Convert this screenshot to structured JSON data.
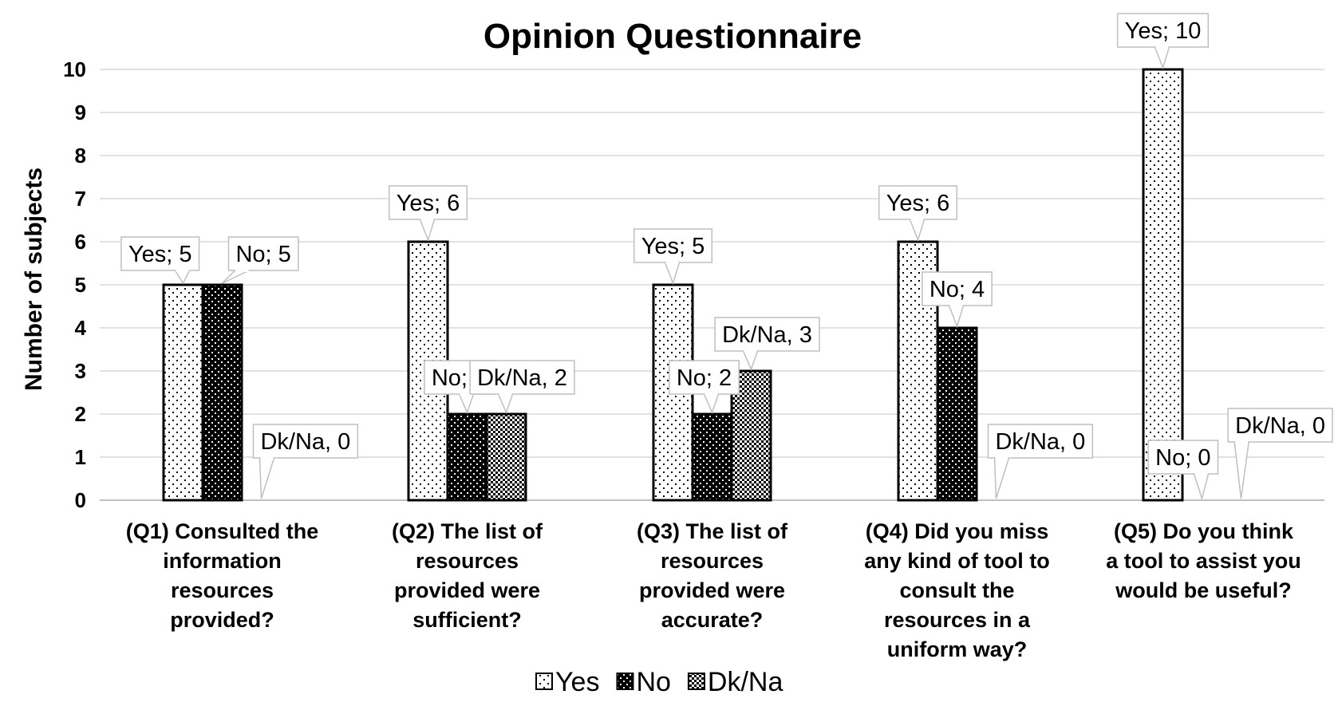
{
  "chart_data": {
    "type": "bar",
    "title": "Opinion Questionnaire",
    "ylabel": "Number of subjects",
    "xlabel": "",
    "ylim": [
      0,
      10
    ],
    "yticks": [
      "0",
      "1",
      "2",
      "3",
      "4",
      "5",
      "6",
      "7",
      "8",
      "9",
      "10"
    ],
    "grid": true,
    "legend_position": "bottom",
    "categories": [
      [
        "(Q1) Consulted the",
        "information",
        "resources",
        "provided?"
      ],
      [
        "(Q2) The list of",
        "resources",
        "provided were",
        "sufficient?"
      ],
      [
        "(Q3) The list of",
        "resources",
        "provided were",
        "accurate?"
      ],
      [
        "(Q4) Did you miss",
        "any kind of tool to",
        "consult the",
        "resources in a",
        "uniform way?"
      ],
      [
        "(Q5) Do you think",
        "a tool to assist you",
        "would be useful?"
      ]
    ],
    "series": [
      {
        "name": "Yes",
        "pattern": "dots-sparse",
        "values": [
          5,
          6,
          5,
          6,
          10
        ],
        "labels": [
          "Yes; 5",
          "Yes; 6",
          "Yes; 5",
          "Yes; 6",
          "Yes; 10"
        ]
      },
      {
        "name": "No",
        "pattern": "dots-dense",
        "values": [
          5,
          2,
          2,
          4,
          0
        ],
        "labels": [
          "No; 5",
          "No; 2",
          "No; 2",
          "No; 4",
          "No; 0"
        ]
      },
      {
        "name": "Dk/Na",
        "pattern": "checker",
        "values": [
          0,
          2,
          3,
          0,
          0
        ],
        "labels": [
          "Dk/Na, 0",
          "Dk/Na, 2",
          "Dk/Na, 3",
          "Dk/Na, 0",
          "Dk/Na, 0"
        ]
      }
    ],
    "colors": {
      "grid": "#d9d9d9",
      "bar_border": "#000000",
      "callout_border": "#bfbfbf"
    }
  }
}
